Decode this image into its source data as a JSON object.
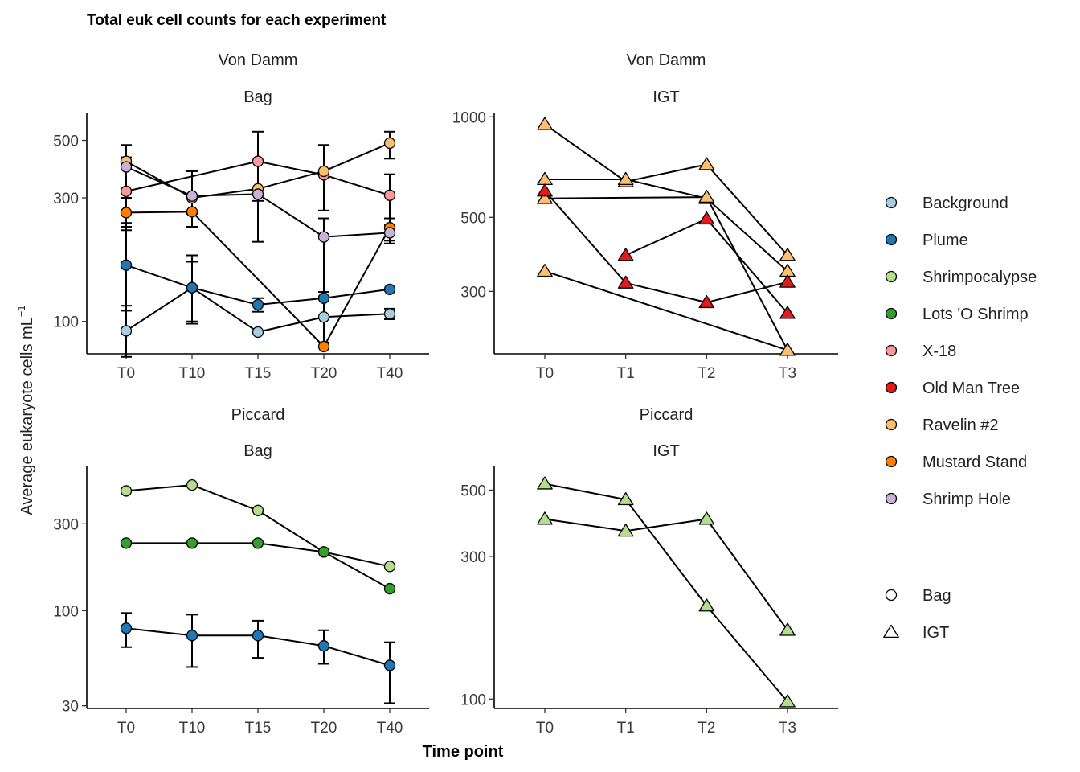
{
  "title": "Total euk cell counts for each experiment",
  "y_axis_label": "Average eukaryote cells  mL",
  "y_axis_label_sup": "−1",
  "x_axis_label": "Time point",
  "legend": {
    "fill": [
      {
        "name": "Background",
        "color": "#a6cee3"
      },
      {
        "name": "Plume",
        "color": "#1f78b4"
      },
      {
        "name": "Shrimpocalypse",
        "color": "#b2df8a"
      },
      {
        "name": "Lots 'O Shrimp",
        "color": "#33a02c"
      },
      {
        "name": "X-18",
        "color": "#fb9a99"
      },
      {
        "name": "Old Man Tree",
        "color": "#e31a1c"
      },
      {
        "name": "Ravelin #2",
        "color": "#fdbf6f"
      },
      {
        "name": "Mustard Stand",
        "color": "#ff7f00"
      },
      {
        "name": "Shrimp Hole",
        "color": "#cab2d6"
      }
    ],
    "shape": [
      {
        "name": "Bag",
        "symbol": "circle"
      },
      {
        "name": "IGT",
        "symbol": "triangle"
      }
    ]
  },
  "chart_data": [
    {
      "type": "line",
      "strip_top": "Von Damm",
      "strip_bottom": "Bag",
      "shape": "circle",
      "scale": "log",
      "categories": [
        "T0",
        "T10",
        "T15",
        "T20",
        "T40"
      ],
      "yticks": [
        100,
        300,
        500
      ],
      "ylim": [
        75,
        640
      ],
      "series": [
        {
          "name": "Background",
          "values": [
            92,
            135,
            91,
            104,
            107
          ],
          "err": [
            [
              73,
              115
            ],
            [
              100,
              170
            ],
            null,
            [
              83,
              130
            ],
            [
              102,
              112
            ]
          ]
        },
        {
          "name": "Plume",
          "values": [
            165,
            135,
            116,
            123,
            133
          ],
          "err": [
            [
              110,
              240
            ],
            [
              98,
              180
            ],
            [
              109,
              123
            ],
            null,
            null
          ]
        },
        {
          "name": "X-18",
          "values": [
            318,
            null,
            415,
            368,
            307
          ],
          "err": [
            [
              232,
              430
            ],
            null,
            [
              292,
              540
            ],
            [
              268,
              480
            ],
            [
              232,
              370
            ]
          ]
        },
        {
          "name": "Ravelin #2",
          "values": [
            415,
            300,
            325,
            380,
            488
          ],
          "err": [
            [
              300,
              480
            ],
            [
              260,
              380
            ],
            null,
            null,
            [
              425,
              540
            ]
          ]
        },
        {
          "name": "Mustard Stand",
          "values": [
            263,
            265,
            null,
            80,
            230
          ],
          "err": [
            [
              225,
              300
            ],
            [
              232,
              300
            ],
            null,
            null,
            [
              200,
              250
            ]
          ]
        },
        {
          "name": "Shrimp Hole",
          "values": [
            395,
            305,
            310,
            212,
            220
          ],
          "err": [
            null,
            null,
            [
              203,
              320
            ],
            [
              125,
              250
            ],
            [
              205,
              236
            ]
          ]
        }
      ]
    },
    {
      "type": "line",
      "strip_top": "Von Damm",
      "strip_bottom": "IGT",
      "shape": "triangle",
      "scale": "log",
      "categories": [
        "T0",
        "T1",
        "T2",
        "T3"
      ],
      "yticks": [
        300,
        500,
        1000
      ],
      "ylim": [
        195,
        1030
      ],
      "series": [
        {
          "name": "Ravelin #2",
          "values": [
            950,
            640,
            720,
            385
          ]
        },
        {
          "name": "Ravelin #2",
          "values": [
            650,
            650,
            570,
            345
          ]
        },
        {
          "name": "Ravelin #2",
          "values": [
            570,
            null,
            575,
            200
          ]
        },
        {
          "name": "Ravelin #2",
          "values": [
            345,
            null,
            null,
            200
          ]
        },
        {
          "name": "Old Man Tree",
          "values": [
            600,
            318,
            278,
            320
          ]
        },
        {
          "name": "Old Man Tree",
          "values": [
            null,
            385,
            495,
            258
          ]
        }
      ]
    },
    {
      "type": "line",
      "strip_top": "Piccard",
      "strip_bottom": "Bag",
      "shape": "circle",
      "scale": "log",
      "categories": [
        "T0",
        "T10",
        "T15",
        "T20",
        "T40"
      ],
      "yticks": [
        30,
        100,
        300
      ],
      "ylim": [
        29,
        620
      ],
      "series": [
        {
          "name": "Shrimpocalypse",
          "values": [
            455,
            490,
            355,
            210,
            175
          ]
        },
        {
          "name": "Lots 'O Shrimp",
          "values": [
            235,
            235,
            235,
            210,
            132
          ]
        },
        {
          "name": "Plume",
          "values": [
            80,
            73,
            73,
            64,
            50
          ],
          "err": [
            [
              63,
              97
            ],
            [
              49,
              95
            ],
            [
              55,
              88
            ],
            [
              51,
              78
            ],
            [
              31,
              67
            ]
          ]
        }
      ]
    },
    {
      "type": "line",
      "strip_top": "Piccard",
      "strip_bottom": "IGT",
      "shape": "triangle",
      "scale": "log",
      "categories": [
        "T0",
        "T1",
        "T2",
        "T3"
      ],
      "yticks": [
        100,
        300,
        500
      ],
      "ylim": [
        93,
        600
      ],
      "series": [
        {
          "name": "Shrimpocalypse",
          "values": [
            525,
            465,
            205,
            98
          ]
        },
        {
          "name": "Shrimpocalypse",
          "values": [
            400,
            365,
            400,
            170
          ]
        }
      ]
    }
  ]
}
